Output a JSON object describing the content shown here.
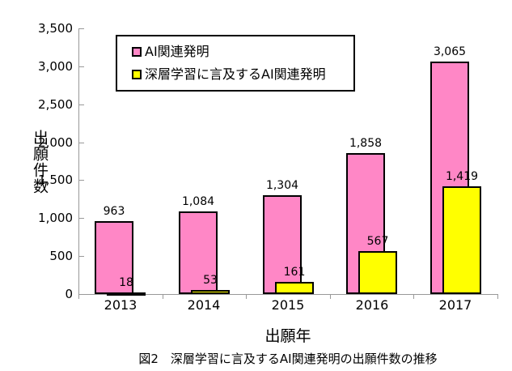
{
  "figure": {
    "caption": "図2　深層学習に言及するAI関連発明の出願件数の推移"
  },
  "chart_data": {
    "type": "bar",
    "title": "",
    "xlabel": "出願年",
    "ylabel": "出願件数",
    "categories": [
      "2013",
      "2014",
      "2015",
      "2016",
      "2017"
    ],
    "series": [
      {
        "name": "AI関連発明",
        "color": "#FF87C6",
        "values": [
          963,
          1084,
          1304,
          1858,
          3065
        ],
        "labels": [
          "963",
          "1,084",
          "1,304",
          "1,858",
          "3,065"
        ]
      },
      {
        "name": "深層学習に言及するAI関連発明",
        "color": "#FFFF00",
        "values": [
          18,
          53,
          161,
          567,
          1419
        ],
        "labels": [
          "18",
          "53",
          "161",
          "567",
          "1,419"
        ]
      }
    ],
    "ylim": [
      0,
      3500
    ],
    "ytick_step": 500,
    "yticks": [
      "0",
      "500",
      "1,000",
      "1,500",
      "2,000",
      "2,500",
      "3,000",
      "3,500"
    ],
    "grid": false,
    "legend_position": "top-left-inside",
    "bar_border_color": "#000000",
    "axis_color": "#999999",
    "label_color": "#000000"
  }
}
